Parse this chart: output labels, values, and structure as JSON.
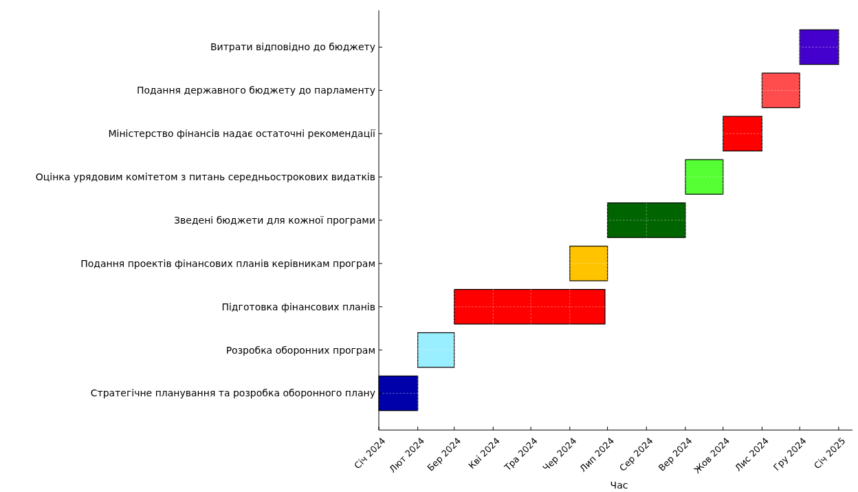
{
  "chart_data": {
    "type": "bar",
    "orientation": "horizontal",
    "xlabel": "Час",
    "categories": [
      "Витрати відповідно до бюджету",
      "Подання державного бюджету до парламенту",
      "Міністерство фінансів надає остаточні рекомендації",
      "Оцінка урядовим комітетом з питань середньострокових видатків",
      "Зведені бюджети для кожної програми",
      "Подання проектів фінансових планів керівникам програм",
      "Підготовка фінансових планів",
      "Розробка оборонних програм",
      "Стратегічне планування та розробка оборонного плану"
    ],
    "base": [
      20058,
      20028,
      19997,
      19967,
      19905,
      19875,
      19783,
      19754,
      19723
    ],
    "values": [
      31,
      30,
      31,
      30,
      62,
      30,
      120,
      29,
      31
    ],
    "colors": [
      "#4400cc",
      "#ff4d4d",
      "#ff0000",
      "#55ff33",
      "#006400",
      "#ffc300",
      "#ff0000",
      "#99eeff",
      "#0000aa"
    ],
    "xlim": [
      "2024-01-01",
      "2025-01-12"
    ],
    "xticks": [
      {
        "value": "2024-01-01",
        "label": "Січ 2024"
      },
      {
        "value": "2024-02-01",
        "label": "Лют 2024"
      },
      {
        "value": "2024-03-01",
        "label": "Бер 2024"
      },
      {
        "value": "2024-04-01",
        "label": "Кві 2024"
      },
      {
        "value": "2024-05-01",
        "label": "Тра 2024"
      },
      {
        "value": "2024-06-01",
        "label": "Чер 2024"
      },
      {
        "value": "2024-07-01",
        "label": "Лип 2024"
      },
      {
        "value": "2024-08-01",
        "label": "Сер 2024"
      },
      {
        "value": "2024-09-01",
        "label": "Вер 2024"
      },
      {
        "value": "2024-10-01",
        "label": "Жов 2024"
      },
      {
        "value": "2024-11-01",
        "label": "Лис 2024"
      },
      {
        "value": "2024-12-01",
        "label": "Гру 2024"
      },
      {
        "value": "2025-01-01",
        "label": "Січ 2025"
      }
    ],
    "grid": true
  }
}
